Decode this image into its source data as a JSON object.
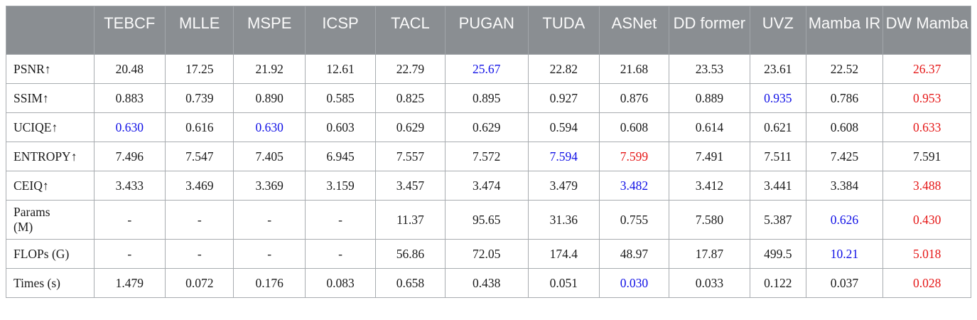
{
  "colors": {
    "header_bg": "#8a8e92",
    "header_text": "#fafafa",
    "header_divider": "#a2a6aa",
    "border": "#a8acb0",
    "body_text": "#1b1b1b",
    "best_value_red": "#e51616",
    "second_best_blue": "#1010e6"
  },
  "table": {
    "columns": [
      "",
      "TEBCF",
      "MLLE",
      "MSPE",
      "ICSP",
      "TACL",
      "PUGAN",
      "TUDA",
      "ASNet",
      "DD former",
      "UVZ",
      "Mamba IR",
      "DW Mamba"
    ],
    "rows": [
      {
        "label": "PSNR↑",
        "cells": [
          {
            "v": "20.48"
          },
          {
            "v": "17.25"
          },
          {
            "v": "21.92"
          },
          {
            "v": "12.61"
          },
          {
            "v": "22.79"
          },
          {
            "v": "25.67",
            "c": "blue"
          },
          {
            "v": "22.82"
          },
          {
            "v": "21.68"
          },
          {
            "v": "23.53"
          },
          {
            "v": "23.61"
          },
          {
            "v": "22.52"
          },
          {
            "v": "26.37",
            "c": "red"
          }
        ]
      },
      {
        "label": "SSIM↑",
        "cells": [
          {
            "v": "0.883"
          },
          {
            "v": "0.739"
          },
          {
            "v": "0.890"
          },
          {
            "v": "0.585"
          },
          {
            "v": "0.825"
          },
          {
            "v": "0.895"
          },
          {
            "v": "0.927"
          },
          {
            "v": "0.876"
          },
          {
            "v": "0.889"
          },
          {
            "v": "0.935",
            "c": "blue"
          },
          {
            "v": "0.786"
          },
          {
            "v": "0.953",
            "c": "red"
          }
        ]
      },
      {
        "label": "UCIQE↑",
        "cells": [
          {
            "v": "0.630",
            "c": "blue"
          },
          {
            "v": "0.616"
          },
          {
            "v": "0.630",
            "c": "blue"
          },
          {
            "v": "0.603"
          },
          {
            "v": "0.629"
          },
          {
            "v": "0.629"
          },
          {
            "v": "0.594"
          },
          {
            "v": "0.608"
          },
          {
            "v": "0.614"
          },
          {
            "v": "0.621"
          },
          {
            "v": "0.608"
          },
          {
            "v": "0.633",
            "c": "red"
          }
        ]
      },
      {
        "label": "ENTROPY↑",
        "cells": [
          {
            "v": "7.496"
          },
          {
            "v": "7.547"
          },
          {
            "v": "7.405"
          },
          {
            "v": "6.945"
          },
          {
            "v": "7.557"
          },
          {
            "v": "7.572"
          },
          {
            "v": "7.594",
            "c": "blue"
          },
          {
            "v": "7.599",
            "c": "red"
          },
          {
            "v": "7.491"
          },
          {
            "v": "7.511"
          },
          {
            "v": "7.425"
          },
          {
            "v": "7.591"
          }
        ]
      },
      {
        "label": "CEIQ↑",
        "cells": [
          {
            "v": "3.433"
          },
          {
            "v": "3.469"
          },
          {
            "v": "3.369"
          },
          {
            "v": "3.159"
          },
          {
            "v": "3.457"
          },
          {
            "v": "3.474"
          },
          {
            "v": "3.479"
          },
          {
            "v": "3.482",
            "c": "blue"
          },
          {
            "v": "3.412"
          },
          {
            "v": "3.441"
          },
          {
            "v": "3.384"
          },
          {
            "v": "3.488",
            "c": "red"
          }
        ]
      },
      {
        "label": "Params\n(M)",
        "cells": [
          {
            "v": "-"
          },
          {
            "v": "-"
          },
          {
            "v": "-"
          },
          {
            "v": "-"
          },
          {
            "v": "11.37"
          },
          {
            "v": "95.65"
          },
          {
            "v": "31.36"
          },
          {
            "v": "0.755"
          },
          {
            "v": "7.580"
          },
          {
            "v": "5.387"
          },
          {
            "v": "0.626",
            "c": "blue"
          },
          {
            "v": "0.430",
            "c": "red"
          }
        ]
      },
      {
        "label": "FLOPs (G)",
        "cells": [
          {
            "v": "-"
          },
          {
            "v": "-"
          },
          {
            "v": "-"
          },
          {
            "v": "-"
          },
          {
            "v": "56.86"
          },
          {
            "v": "72.05"
          },
          {
            "v": "174.4"
          },
          {
            "v": "48.97"
          },
          {
            "v": "17.87"
          },
          {
            "v": "499.5"
          },
          {
            "v": "10.21",
            "c": "blue"
          },
          {
            "v": "5.018",
            "c": "red"
          }
        ]
      },
      {
        "label": "Times (s)",
        "cells": [
          {
            "v": "1.479"
          },
          {
            "v": "0.072"
          },
          {
            "v": "0.176"
          },
          {
            "v": "0.083"
          },
          {
            "v": "0.658"
          },
          {
            "v": "0.438"
          },
          {
            "v": "0.051"
          },
          {
            "v": "0.030",
            "c": "blue"
          },
          {
            "v": "0.033"
          },
          {
            "v": "0.122"
          },
          {
            "v": "0.037"
          },
          {
            "v": "0.028",
            "c": "red"
          }
        ]
      }
    ]
  }
}
